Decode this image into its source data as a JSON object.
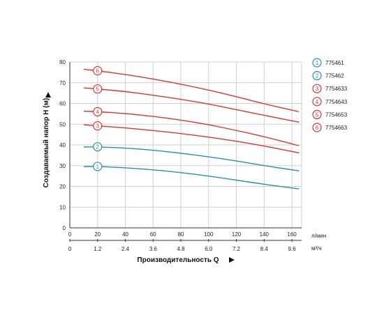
{
  "chart_data": {
    "type": "line",
    "ylabel": "Создаваемый напор H (м)",
    "xlabel": "Производительность Q",
    "ylim": [
      0,
      80
    ],
    "xlim": [
      0,
      167
    ],
    "y_ticks": [
      "0",
      "10",
      "20",
      "30",
      "40",
      "50",
      "60",
      "70",
      "80"
    ],
    "x_ticks": [
      "0",
      "20",
      "40",
      "60",
      "80",
      "100",
      "120",
      "140",
      "160"
    ],
    "x_unit": "л/мин",
    "x2_ticks": [
      "0",
      "1.2",
      "2.4",
      "3.6",
      "4.8",
      "6.0",
      "7.2",
      "8.4",
      "9.6"
    ],
    "x2_unit": "м³/ч",
    "grid": true,
    "legend_position": "right",
    "series": [
      {
        "marker": "1",
        "name": "775461",
        "color": "#2a8fa8",
        "x": [
          10,
          20,
          40,
          60,
          80,
          100,
          120,
          140,
          165
        ],
        "y": [
          29.5,
          29.6,
          29.0,
          28.0,
          26.7,
          25.0,
          23.0,
          21.0,
          18.8
        ]
      },
      {
        "marker": "2",
        "name": "775462",
        "color": "#2a8fa8",
        "x": [
          10,
          20,
          40,
          60,
          80,
          100,
          120,
          140,
          165
        ],
        "y": [
          39.0,
          39.1,
          38.5,
          37.5,
          36.0,
          34.3,
          32.3,
          30.0,
          27.5
        ]
      },
      {
        "marker": "3",
        "name": "7754633",
        "color": "#d9362f",
        "x": [
          10,
          20,
          40,
          60,
          80,
          100,
          120,
          140,
          165
        ],
        "y": [
          49.7,
          49.2,
          48.2,
          47.0,
          45.5,
          43.8,
          41.8,
          39.5,
          36.2
        ]
      },
      {
        "marker": "4",
        "name": "7754643",
        "color": "#d9362f",
        "x": [
          10,
          20,
          40,
          60,
          80,
          100,
          120,
          140,
          165
        ],
        "y": [
          56.3,
          56.0,
          55.2,
          53.8,
          52.0,
          49.8,
          47.0,
          44.0,
          39.6
        ]
      },
      {
        "marker": "5",
        "name": "7754653",
        "color": "#d9362f",
        "x": [
          10,
          20,
          40,
          60,
          80,
          100,
          120,
          140,
          165
        ],
        "y": [
          67.5,
          67.0,
          65.8,
          64.0,
          62.0,
          59.8,
          57.0,
          54.3,
          51.0
        ]
      },
      {
        "marker": "6",
        "name": "7754663",
        "color": "#d9362f",
        "x": [
          10,
          20,
          40,
          60,
          80,
          100,
          120,
          140,
          165
        ],
        "y": [
          76.5,
          75.8,
          74.0,
          71.8,
          69.3,
          66.5,
          63.3,
          59.8,
          56.0
        ]
      }
    ]
  }
}
